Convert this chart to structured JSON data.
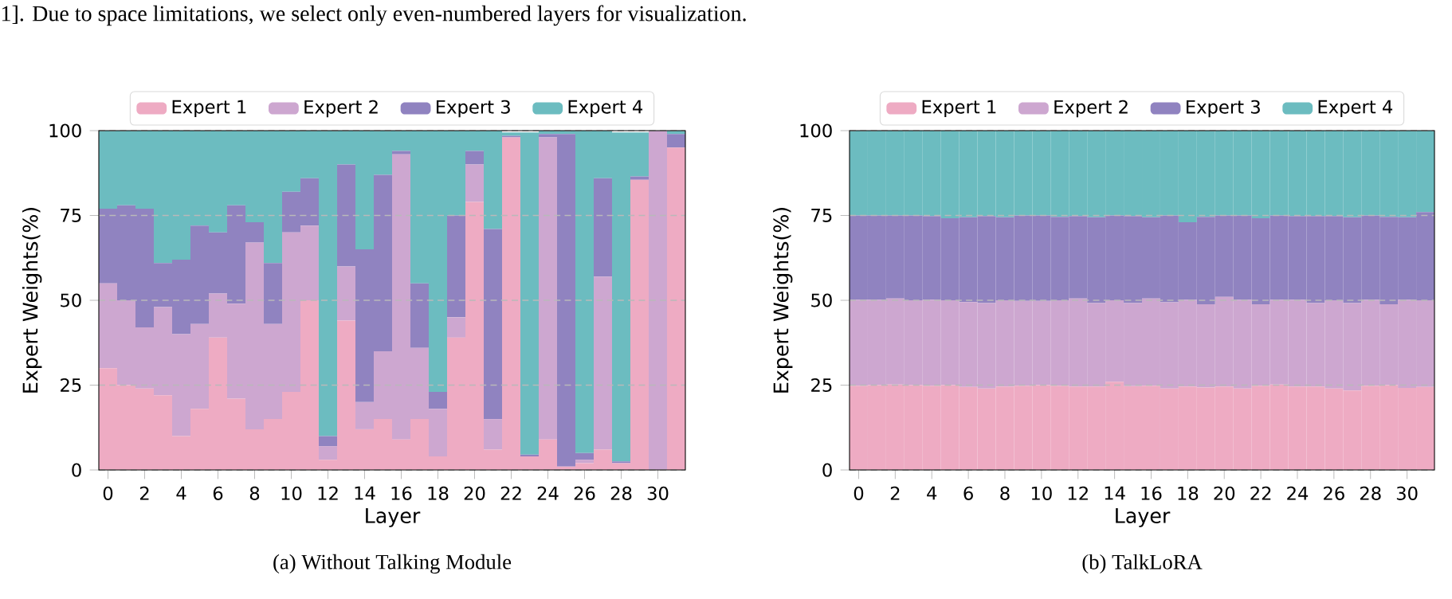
{
  "chart_data": [
    {
      "type": "bar",
      "stacked": true,
      "subtitle": "(a) Without Talking Module",
      "annotations": [
        "1]. Due to space limitations, we select only even-numbered layers for visualization."
      ],
      "xlabel": "Layer",
      "ylabel": "Expert Weights(%)",
      "ylim": [
        0,
        100
      ],
      "yticks": [
        0,
        25,
        50,
        75,
        100
      ],
      "grid": "y",
      "legend": "top",
      "categories": [
        "0",
        null,
        "2",
        null,
        "4",
        null,
        "6",
        null,
        "8",
        null,
        "10",
        null,
        "12",
        null,
        "14",
        null,
        "16",
        null,
        "18",
        null,
        "20",
        null,
        "22",
        null,
        "24",
        null,
        "26",
        null,
        "28",
        null,
        "30",
        null
      ],
      "series": [
        {
          "name": "Expert 1",
          "color": "#eeabc3",
          "values": [
            30,
            25,
            24,
            22,
            10,
            18,
            39,
            21,
            12,
            15,
            23,
            50,
            3,
            44,
            12,
            15,
            9,
            15,
            4,
            39,
            79,
            6,
            98,
            4,
            9,
            1,
            2,
            6,
            2,
            85.5,
            0,
            95
          ]
        },
        {
          "name": "Expert 2",
          "color": "#cda7d0",
          "values": [
            25,
            25,
            18,
            26,
            30,
            25,
            13,
            28,
            55,
            28,
            47,
            22,
            4,
            16,
            8,
            20,
            84,
            21,
            14,
            6,
            11,
            9,
            null,
            null,
            89,
            0,
            1,
            51,
            null,
            null,
            100,
            0
          ]
        },
        {
          "name": "Expert 3",
          "color": "#9083c0",
          "values": [
            22,
            28,
            35,
            13,
            22,
            29,
            18,
            29,
            6,
            18,
            12,
            14,
            3,
            30,
            45,
            52,
            1,
            19,
            5,
            30,
            4,
            56,
            0.5,
            0.5,
            1,
            98,
            2,
            29,
            0.5,
            1,
            0,
            4
          ]
        },
        {
          "name": "Expert 4",
          "color": "#6cbcc0",
          "values": [
            23,
            22,
            23,
            39,
            38,
            28,
            30,
            22,
            27,
            39,
            18,
            14,
            90,
            10,
            35,
            13,
            6,
            45,
            77,
            25,
            6,
            29,
            1,
            95,
            1,
            1,
            95,
            14,
            97,
            13,
            0,
            1
          ]
        }
      ]
    },
    {
      "type": "bar",
      "stacked": true,
      "subtitle": "(b) TalkLoRA",
      "xlabel": "Layer",
      "ylabel": "Expert Weights(%)",
      "ylim": [
        0,
        100
      ],
      "yticks": [
        0,
        25,
        50,
        75,
        100
      ],
      "grid": "y",
      "legend": "top",
      "categories": [
        "0",
        null,
        "2",
        null,
        "4",
        null,
        "6",
        null,
        "8",
        null,
        "10",
        null,
        "12",
        null,
        "14",
        null,
        "16",
        null,
        "18",
        null,
        "20",
        null,
        "22",
        null,
        "24",
        null,
        "26",
        null,
        "28",
        null,
        "30",
        null
      ],
      "series": [
        {
          "name": "Expert 1",
          "color": "#eeabc3",
          "values": [
            24.8,
            25,
            25.2,
            25,
            24.8,
            25,
            24.5,
            24,
            24.6,
            24.8,
            25,
            24.8,
            24.6,
            24.6,
            26,
            24.7,
            24.8,
            24,
            24.6,
            24.3,
            24.6,
            24,
            24.8,
            25.2,
            24.6,
            24.6,
            24,
            23.4,
            24.8,
            25,
            24.2,
            24.5
          ]
        },
        {
          "name": "Expert 2",
          "color": "#cda7d0",
          "values": [
            25.4,
            25.2,
            25.3,
            25,
            25.4,
            25,
            25,
            25.2,
            25.4,
            25,
            24.8,
            25.2,
            25.9,
            24.6,
            24,
            24.5,
            25.7,
            25.4,
            25.6,
            24.5,
            26.4,
            26.2,
            24,
            25,
            25.6,
            24.6,
            26,
            25.8,
            25.4,
            23.8,
            26,
            25.5
          ]
        },
        {
          "name": "Expert 3",
          "color": "#9083c0",
          "values": [
            24.8,
            24.8,
            24.5,
            25,
            24.6,
            24.2,
            25,
            25.6,
            24.5,
            25.2,
            25.2,
            24.6,
            24.3,
            25.3,
            25,
            25.6,
            24,
            25.6,
            22.8,
            25.8,
            24,
            24.8,
            25.4,
            24.8,
            24.6,
            25.6,
            24.8,
            25.3,
            24.8,
            25.8,
            24.3,
            26
          ]
        },
        {
          "name": "Expert 4",
          "color": "#6cbcc0",
          "values": [
            25,
            25,
            25,
            25,
            25.2,
            25.8,
            25.5,
            25.2,
            25.5,
            25,
            25,
            25.4,
            25.2,
            25.5,
            25,
            25.2,
            25.5,
            25,
            27,
            25.4,
            25,
            25,
            25.8,
            25,
            25.2,
            25.2,
            25.2,
            25.5,
            25,
            25.4,
            25.5,
            24
          ]
        }
      ]
    }
  ]
}
